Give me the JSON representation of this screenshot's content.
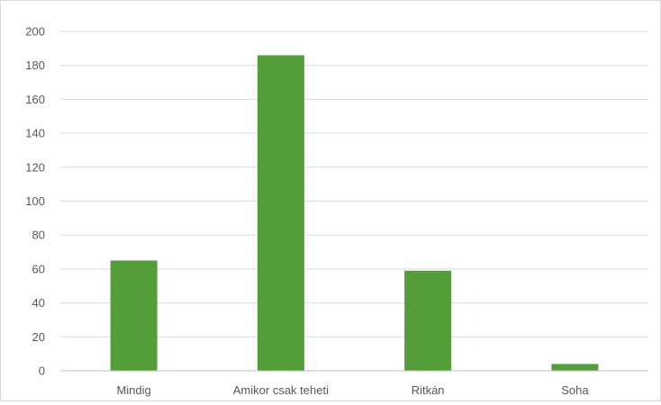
{
  "chart_data": {
    "type": "bar",
    "title": "",
    "xlabel": "",
    "ylabel": "",
    "categories": [
      "Mindig",
      "Amikor csak teheti",
      "Ritkán",
      "Soha"
    ],
    "values": [
      65,
      186,
      59,
      4
    ],
    "ylim": [
      0,
      200
    ],
    "yticks": [
      0,
      20,
      40,
      60,
      80,
      100,
      120,
      140,
      160,
      180,
      200
    ],
    "grid": true,
    "legend": "none",
    "colors": {
      "bar": "#549e39",
      "grid": "#d9d9d9",
      "axis": "#bfbfbf",
      "text": "#595959"
    }
  }
}
